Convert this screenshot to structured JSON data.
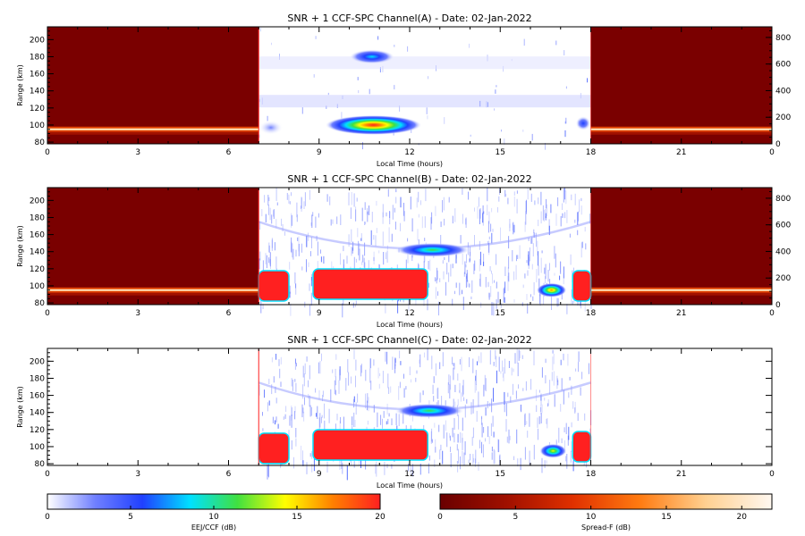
{
  "chart_data": [
    {
      "type": "heatmap",
      "title": "SNR + 1 CCF-SPC Channel(A) - Date: 02-Jan-2022",
      "xlabel": "Local Time (hours)",
      "ylabel": "Range (km)",
      "xlim": [
        0,
        24
      ],
      "ylim": [
        78,
        215
      ],
      "y2lim": [
        0,
        880
      ],
      "x_ticks": [
        "0",
        "3",
        "6",
        "9",
        "12",
        "15",
        "18",
        "21",
        "0"
      ],
      "y_ticks": [
        "80",
        "100",
        "120",
        "140",
        "160",
        "180",
        "200"
      ],
      "y2_ticks": [
        "0",
        "200",
        "400",
        "600",
        "800"
      ],
      "day_window": [
        7,
        18
      ],
      "night_map": "Spread-F",
      "night_bottom_layer_range_km": 95,
      "features": [
        {
          "map": "EEJ/CCF",
          "t_start": 9.2,
          "t_end": 12.4,
          "range_km": 100,
          "peak_db": 20
        },
        {
          "map": "EEJ/CCF",
          "t_start": 10.0,
          "t_end": 11.5,
          "range_km": 180,
          "peak_db": 8
        },
        {
          "map": "EEJ/CCF",
          "t_start": 7.0,
          "t_end": 7.8,
          "range_km": 97,
          "peak_db": 4
        },
        {
          "map": "EEJ/CCF",
          "t_start": 17.5,
          "t_end": 18.0,
          "range_km": 102,
          "peak_db": 5
        }
      ]
    },
    {
      "type": "heatmap",
      "title": "SNR + 1 CCF-SPC Channel(B) - Date: 02-Jan-2022",
      "xlabel": "Local Time (hours)",
      "ylabel": "Range (km)",
      "xlim": [
        0,
        24
      ],
      "ylim": [
        78,
        215
      ],
      "y2lim": [
        0,
        880
      ],
      "x_ticks": [
        "0",
        "3",
        "6",
        "9",
        "12",
        "15",
        "18",
        "21",
        "0"
      ],
      "y_ticks": [
        "80",
        "100",
        "120",
        "140",
        "160",
        "180",
        "200"
      ],
      "y2_ticks": [
        "0",
        "200",
        "400",
        "600",
        "800"
      ],
      "day_window": [
        7,
        18
      ],
      "night_map": "Spread-F",
      "night_bottom_layer_range_km": 95,
      "features": [
        {
          "map": "EEJ/CCF",
          "t_start": 7.0,
          "t_end": 8.0,
          "range_km": 100,
          "peak_db": 20
        },
        {
          "map": "EEJ/CCF",
          "t_start": 8.8,
          "t_end": 12.6,
          "range_km": 102,
          "peak_db": 20
        },
        {
          "map": "EEJ/CCF",
          "t_start": 11.5,
          "t_end": 14.0,
          "range_km": 142,
          "peak_db": 12
        },
        {
          "map": "EEJ/CCF",
          "t_start": 16.2,
          "t_end": 17.2,
          "range_km": 95,
          "peak_db": 17
        },
        {
          "map": "EEJ/CCF",
          "t_start": 17.4,
          "t_end": 18.0,
          "range_km": 100,
          "peak_db": 20
        }
      ]
    },
    {
      "type": "heatmap",
      "title": "SNR + 1 CCF-SPC Channel(C) - Date: 02-Jan-2022",
      "xlabel": "Local Time (hours)",
      "ylabel": "Range (km)",
      "xlim": [
        0,
        24
      ],
      "ylim": [
        78,
        215
      ],
      "x_ticks": [
        "0",
        "3",
        "6",
        "9",
        "12",
        "15",
        "18",
        "21",
        "0"
      ],
      "y_ticks": [
        "80",
        "100",
        "120",
        "140",
        "160",
        "180",
        "200"
      ],
      "day_window": [
        7,
        18
      ],
      "night_map": "none",
      "features": [
        {
          "map": "EEJ/CCF",
          "t_start": 7.0,
          "t_end": 8.0,
          "range_km": 98,
          "peak_db": 20
        },
        {
          "map": "EEJ/CCF",
          "t_start": 8.8,
          "t_end": 12.6,
          "range_km": 102,
          "peak_db": 20
        },
        {
          "map": "EEJ/CCF",
          "t_start": 11.5,
          "t_end": 13.8,
          "range_km": 142,
          "peak_db": 12
        },
        {
          "map": "EEJ/CCF",
          "t_start": 16.3,
          "t_end": 17.2,
          "range_km": 95,
          "peak_db": 15
        },
        {
          "map": "EEJ/CCF",
          "t_start": 17.4,
          "t_end": 18.0,
          "range_km": 100,
          "peak_db": 20
        }
      ]
    }
  ],
  "colorbars": [
    {
      "label": "EEJ/CCF (dB)",
      "range": [
        0,
        20
      ],
      "ticks": [
        "0",
        "5",
        "10",
        "15",
        "20"
      ],
      "stops": [
        "#ffffff",
        "#7080ff",
        "#2040ff",
        "#00e0ff",
        "#40e040",
        "#ffff00",
        "#ff8000",
        "#ff2020"
      ]
    },
    {
      "label": "Spread-F (dB)",
      "range": [
        0,
        22
      ],
      "ticks": [
        "0",
        "5",
        "10",
        "15",
        "20"
      ],
      "stops": [
        "#6a0000",
        "#a01000",
        "#e03000",
        "#ff7a10",
        "#ffd090",
        "#fff8f0"
      ]
    }
  ]
}
